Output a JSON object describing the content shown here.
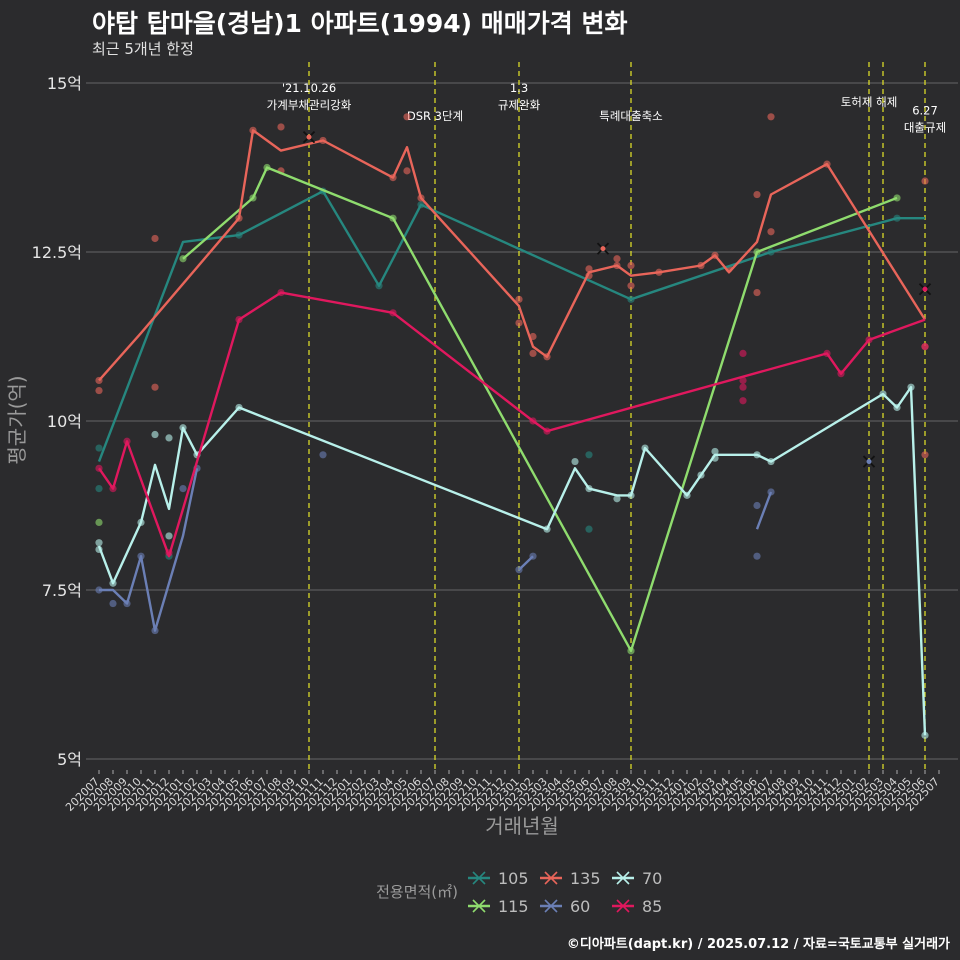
{
  "chart_data": {
    "type": "line",
    "title": "야탑 탑마을(경남)1 아파트(1994) 매매가격 변화",
    "subtitle": "최근 5개년 한정",
    "xlabel": "거래년월",
    "ylabel": "평균가(억)",
    "ylim": [
      5,
      15
    ],
    "yticks": [
      5,
      7.5,
      10,
      12.5,
      15
    ],
    "ytick_labels": [
      "5억",
      "7.5억",
      "10억",
      "12.5억",
      "15억"
    ],
    "months": [
      "202007",
      "202008",
      "202009",
      "202010",
      "202011",
      "202012",
      "202101",
      "202102",
      "202103",
      "202104",
      "202105",
      "202106",
      "202107",
      "202108",
      "202109",
      "202110",
      "202111",
      "202112",
      "202201",
      "202202",
      "202203",
      "202204",
      "202205",
      "202206",
      "202207",
      "202208",
      "202209",
      "202210",
      "202211",
      "202212",
      "202301",
      "202302",
      "202303",
      "202304",
      "202305",
      "202306",
      "202307",
      "202308",
      "202309",
      "202310",
      "202311",
      "202312",
      "202401",
      "202402",
      "202403",
      "202404",
      "202405",
      "202406",
      "202407",
      "202408",
      "202409",
      "202410",
      "202411",
      "202412",
      "202501",
      "202502",
      "202503",
      "202504",
      "202505",
      "202506",
      "202507"
    ],
    "legend_title": "전용면적(㎡)",
    "series": [
      {
        "name": "105",
        "color": "#26877f",
        "line": [
          [
            "202007",
            9.4
          ],
          [
            "202101",
            12.65
          ],
          [
            "202105",
            12.75
          ],
          [
            "202111",
            13.4
          ],
          [
            "202203",
            12.0
          ],
          [
            "202206",
            13.2
          ],
          [
            "202309",
            11.8
          ],
          [
            "202407",
            12.5
          ],
          [
            "202504",
            13.0
          ],
          [
            "202506",
            13.0
          ]
        ],
        "points": [
          [
            "202007",
            9.6
          ],
          [
            "202007",
            9.0
          ],
          [
            "202012",
            8.0
          ],
          [
            "202105",
            12.75
          ],
          [
            "202111",
            13.4
          ],
          [
            "202203",
            12.0
          ],
          [
            "202206",
            13.2
          ],
          [
            "202306",
            9.5
          ],
          [
            "202306",
            8.4
          ],
          [
            "202309",
            11.8
          ],
          [
            "202407",
            12.5
          ],
          [
            "202504",
            13.0
          ]
        ]
      },
      {
        "name": "115",
        "color": "#8fdc6e",
        "line": [
          [
            "202101",
            12.4
          ],
          [
            "202106",
            13.3
          ],
          [
            "202107",
            13.75
          ],
          [
            "202204",
            13.0
          ],
          [
            "202309",
            6.6
          ],
          [
            "202406",
            12.5
          ],
          [
            "202504",
            13.3
          ]
        ],
        "points": [
          [
            "202007",
            8.5
          ],
          [
            "202101",
            12.4
          ],
          [
            "202106",
            13.3
          ],
          [
            "202107",
            13.75
          ],
          [
            "202204",
            13.0
          ],
          [
            "202309",
            6.6
          ],
          [
            "202406",
            12.5
          ],
          [
            "202504",
            13.3
          ]
        ]
      },
      {
        "name": "135",
        "color": "#e8655a",
        "line": [
          [
            "202007",
            10.6
          ],
          [
            "202010",
            11.3
          ],
          [
            "202105",
            13.0
          ],
          [
            "202106",
            14.3
          ],
          [
            "202108",
            14.0
          ],
          [
            "202111",
            14.15
          ],
          [
            "202204",
            13.6
          ],
          [
            "202205",
            14.05
          ],
          [
            "202206",
            13.3
          ],
          [
            "202301",
            11.7
          ],
          [
            "202302",
            11.1
          ],
          [
            "202303",
            10.95
          ],
          [
            "202306",
            12.2
          ],
          [
            "202308",
            12.3
          ],
          [
            "202309",
            12.15
          ],
          [
            "202311",
            12.2
          ],
          [
            "202402",
            12.3
          ],
          [
            "202403",
            12.45
          ],
          [
            "202404",
            12.2
          ],
          [
            "202406",
            12.65
          ],
          [
            "202407",
            13.35
          ],
          [
            "202411",
            13.8
          ],
          [
            "202506",
            11.5
          ]
        ],
        "points": [
          [
            "202007",
            10.6
          ],
          [
            "202007",
            10.45
          ],
          [
            "202011",
            12.7
          ],
          [
            "202011",
            10.5
          ],
          [
            "202105",
            13.0
          ],
          [
            "202106",
            14.3
          ],
          [
            "202108",
            14.35
          ],
          [
            "202108",
            13.7
          ],
          [
            "202111",
            14.15
          ],
          [
            "202204",
            13.6
          ],
          [
            "202205",
            14.5
          ],
          [
            "202205",
            13.7
          ],
          [
            "202206",
            13.3
          ],
          [
            "202301",
            11.8
          ],
          [
            "202301",
            11.45
          ],
          [
            "202302",
            11.25
          ],
          [
            "202302",
            11.0
          ],
          [
            "202303",
            10.95
          ],
          [
            "202306",
            12.25
          ],
          [
            "202306",
            12.15
          ],
          [
            "202308",
            12.4
          ],
          [
            "202308",
            12.3
          ],
          [
            "202309",
            12.3
          ],
          [
            "202309",
            12.0
          ],
          [
            "202311",
            12.2
          ],
          [
            "202402",
            12.3
          ],
          [
            "202403",
            12.45
          ],
          [
            "202404",
            12.25
          ],
          [
            "202406",
            13.35
          ],
          [
            "202406",
            11.9
          ],
          [
            "202407",
            14.5
          ],
          [
            "202407",
            12.8
          ],
          [
            "202411",
            13.8
          ],
          [
            "202506",
            13.55
          ],
          [
            "202506",
            11.1
          ],
          [
            "202506",
            9.5
          ]
        ]
      },
      {
        "name": "60",
        "color": "#6b7fb5",
        "line": [
          [
            "202007",
            7.5
          ],
          [
            "202008",
            7.5
          ],
          [
            "202009",
            7.3
          ],
          [
            "202010",
            8.0
          ],
          [
            "202011",
            6.9
          ],
          [
            "202101",
            8.3
          ],
          [
            "202102",
            9.3
          ]
        ],
        "segments": [
          [
            [
              "202301",
              7.8
            ],
            [
              "202302",
              8.0
            ]
          ],
          [
            [
              "202406",
              8.4
            ],
            [
              "202407",
              8.95
            ]
          ]
        ],
        "points": [
          [
            "202007",
            7.5
          ],
          [
            "202008",
            7.3
          ],
          [
            "202009",
            7.3
          ],
          [
            "202010",
            8.0
          ],
          [
            "202011",
            6.9
          ],
          [
            "202101",
            9.0
          ],
          [
            "202102",
            9.3
          ],
          [
            "202111",
            9.5
          ],
          [
            "202301",
            7.8
          ],
          [
            "202302",
            8.0
          ],
          [
            "202406",
            8.75
          ],
          [
            "202406",
            8.0
          ],
          [
            "202407",
            8.95
          ]
        ]
      },
      {
        "name": "70",
        "color": "#b8f0ea",
        "line": [
          [
            "202007",
            8.15
          ],
          [
            "202008",
            7.6
          ],
          [
            "202010",
            8.5
          ],
          [
            "202011",
            9.35
          ],
          [
            "202012",
            8.7
          ],
          [
            "202101",
            9.9
          ],
          [
            "202102",
            9.5
          ],
          [
            "202105",
            10.2
          ],
          [
            "202303",
            8.4
          ],
          [
            "202305",
            9.3
          ],
          [
            "202306",
            9.0
          ],
          [
            "202308",
            8.9
          ],
          [
            "202309",
            8.9
          ],
          [
            "202310",
            9.6
          ],
          [
            "202401",
            8.9
          ],
          [
            "202402",
            9.2
          ],
          [
            "202403",
            9.5
          ],
          [
            "202406",
            9.5
          ],
          [
            "202407",
            9.4
          ],
          [
            "202503",
            10.4
          ],
          [
            "202504",
            10.2
          ],
          [
            "202505",
            10.5
          ],
          [
            "202506",
            5.35
          ]
        ],
        "points": [
          [
            "202007",
            8.2
          ],
          [
            "202007",
            8.1
          ],
          [
            "202008",
            7.6
          ],
          [
            "202010",
            8.5
          ],
          [
            "202011",
            9.8
          ],
          [
            "202012",
            9.75
          ],
          [
            "202012",
            8.3
          ],
          [
            "202101",
            9.9
          ],
          [
            "202102",
            9.5
          ],
          [
            "202105",
            10.2
          ],
          [
            "202303",
            8.4
          ],
          [
            "202305",
            9.4
          ],
          [
            "202306",
            9.0
          ],
          [
            "202308",
            8.85
          ],
          [
            "202309",
            8.9
          ],
          [
            "202310",
            9.6
          ],
          [
            "202401",
            8.9
          ],
          [
            "202402",
            9.2
          ],
          [
            "202403",
            9.55
          ],
          [
            "202403",
            9.45
          ],
          [
            "202406",
            9.5
          ],
          [
            "202407",
            9.4
          ],
          [
            "202503",
            10.4
          ],
          [
            "202504",
            10.2
          ],
          [
            "202505",
            10.5
          ],
          [
            "202506",
            5.35
          ]
        ]
      },
      {
        "name": "85",
        "color": "#e0185e",
        "line": [
          [
            "202007",
            9.3
          ],
          [
            "202008",
            9.0
          ],
          [
            "202009",
            9.7
          ],
          [
            "202012",
            8.0
          ],
          [
            "202105",
            11.5
          ],
          [
            "202108",
            11.9
          ],
          [
            "202204",
            11.6
          ],
          [
            "202302",
            10.0
          ],
          [
            "202303",
            9.85
          ],
          [
            "202411",
            11.0
          ],
          [
            "202412",
            10.7
          ],
          [
            "202502",
            11.2
          ],
          [
            "202506",
            11.5
          ]
        ],
        "points": [
          [
            "202007",
            9.3
          ],
          [
            "202008",
            9.0
          ],
          [
            "202009",
            9.7
          ],
          [
            "202012",
            8.05
          ],
          [
            "202105",
            11.5
          ],
          [
            "202108",
            11.9
          ],
          [
            "202204",
            11.6
          ],
          [
            "202302",
            10.0
          ],
          [
            "202303",
            9.85
          ],
          [
            "202405",
            11.0
          ],
          [
            "202405",
            10.6
          ],
          [
            "202405",
            10.5
          ],
          [
            "202405",
            10.3
          ],
          [
            "202411",
            11.0
          ],
          [
            "202412",
            10.7
          ],
          [
            "202502",
            11.2
          ],
          [
            "202506",
            11.1
          ]
        ]
      }
    ],
    "cross_markers": [
      {
        "series": "135",
        "month": "202110",
        "value": 14.2
      },
      {
        "series": "135",
        "month": "202307",
        "value": 12.55
      },
      {
        "series": "60",
        "month": "202502",
        "value": 9.4
      },
      {
        "series": "85",
        "month": "202506",
        "value": 11.95
      }
    ],
    "events": [
      {
        "month": "202110",
        "lines": [
          "'21.10.26",
          "가계부채관리강화"
        ],
        "level": 1
      },
      {
        "month": "202207",
        "lines": [
          "DSR 3단계"
        ],
        "level": 3
      },
      {
        "month": "202301",
        "lines": [
          "1.3",
          "규제완화"
        ],
        "level": 1
      },
      {
        "month": "202309",
        "lines": [
          "특례대출축소"
        ],
        "level": 3
      },
      {
        "month": "202502",
        "lines": [
          "토허제 해제"
        ],
        "level": 2
      },
      {
        "month": "202503",
        "lines": [],
        "level": 2
      },
      {
        "month": "202506",
        "lines": [
          "6.27",
          "대출규제"
        ],
        "level": 2.6
      }
    ]
  },
  "caption": "©디아파트(dapt.kr) / 2025.07.12 / 자료=국토교통부 실거래가"
}
